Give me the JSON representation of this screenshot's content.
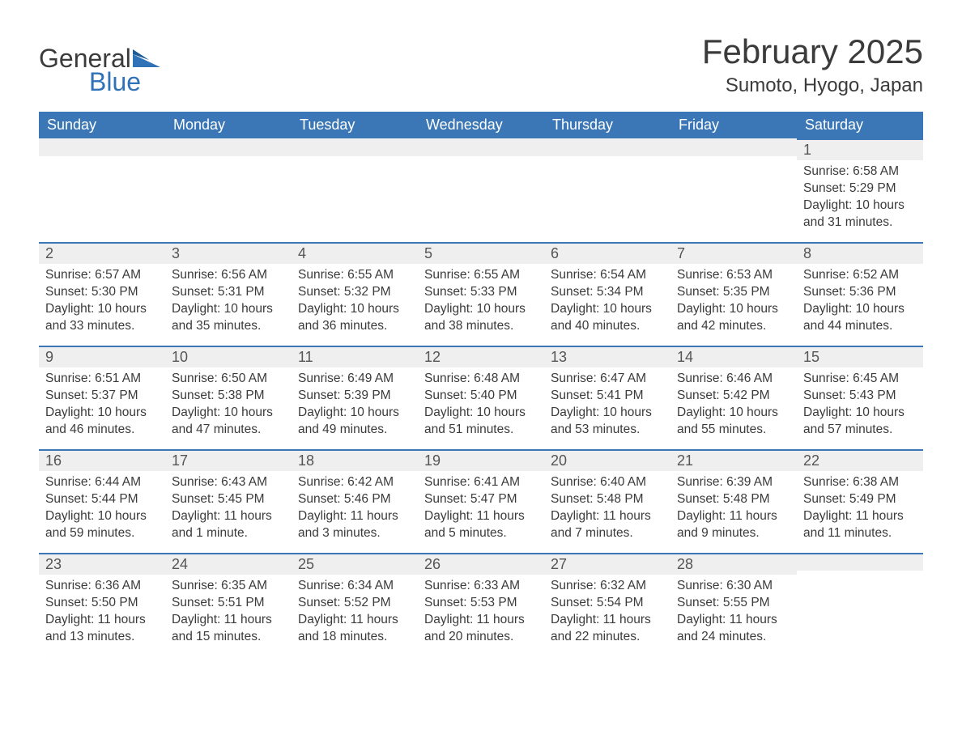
{
  "logo": {
    "word1": "General",
    "word2": "Blue"
  },
  "title": "February 2025",
  "subtitle": "Sumoto, Hyogo, Japan",
  "style": {
    "header_bg": "#3b77b6",
    "header_text": "#ffffff",
    "daynum_bg": "#efefef",
    "row_border": "#3b77b6",
    "body_text": "#3b3b3b",
    "page_bg": "#ffffff",
    "title_fontsize": 42,
    "subtitle_fontsize": 24,
    "header_fontsize": 18,
    "daynum_fontsize": 18,
    "cell_fontsize": 15.5
  },
  "columns": [
    "Sunday",
    "Monday",
    "Tuesday",
    "Wednesday",
    "Thursday",
    "Friday",
    "Saturday"
  ],
  "weeks": [
    [
      null,
      null,
      null,
      null,
      null,
      null,
      {
        "day": "1",
        "sunrise": "Sunrise: 6:58 AM",
        "sunset": "Sunset: 5:29 PM",
        "daylight": "Daylight: 10 hours and 31 minutes."
      }
    ],
    [
      {
        "day": "2",
        "sunrise": "Sunrise: 6:57 AM",
        "sunset": "Sunset: 5:30 PM",
        "daylight": "Daylight: 10 hours and 33 minutes."
      },
      {
        "day": "3",
        "sunrise": "Sunrise: 6:56 AM",
        "sunset": "Sunset: 5:31 PM",
        "daylight": "Daylight: 10 hours and 35 minutes."
      },
      {
        "day": "4",
        "sunrise": "Sunrise: 6:55 AM",
        "sunset": "Sunset: 5:32 PM",
        "daylight": "Daylight: 10 hours and 36 minutes."
      },
      {
        "day": "5",
        "sunrise": "Sunrise: 6:55 AM",
        "sunset": "Sunset: 5:33 PM",
        "daylight": "Daylight: 10 hours and 38 minutes."
      },
      {
        "day": "6",
        "sunrise": "Sunrise: 6:54 AM",
        "sunset": "Sunset: 5:34 PM",
        "daylight": "Daylight: 10 hours and 40 minutes."
      },
      {
        "day": "7",
        "sunrise": "Sunrise: 6:53 AM",
        "sunset": "Sunset: 5:35 PM",
        "daylight": "Daylight: 10 hours and 42 minutes."
      },
      {
        "day": "8",
        "sunrise": "Sunrise: 6:52 AM",
        "sunset": "Sunset: 5:36 PM",
        "daylight": "Daylight: 10 hours and 44 minutes."
      }
    ],
    [
      {
        "day": "9",
        "sunrise": "Sunrise: 6:51 AM",
        "sunset": "Sunset: 5:37 PM",
        "daylight": "Daylight: 10 hours and 46 minutes."
      },
      {
        "day": "10",
        "sunrise": "Sunrise: 6:50 AM",
        "sunset": "Sunset: 5:38 PM",
        "daylight": "Daylight: 10 hours and 47 minutes."
      },
      {
        "day": "11",
        "sunrise": "Sunrise: 6:49 AM",
        "sunset": "Sunset: 5:39 PM",
        "daylight": "Daylight: 10 hours and 49 minutes."
      },
      {
        "day": "12",
        "sunrise": "Sunrise: 6:48 AM",
        "sunset": "Sunset: 5:40 PM",
        "daylight": "Daylight: 10 hours and 51 minutes."
      },
      {
        "day": "13",
        "sunrise": "Sunrise: 6:47 AM",
        "sunset": "Sunset: 5:41 PM",
        "daylight": "Daylight: 10 hours and 53 minutes."
      },
      {
        "day": "14",
        "sunrise": "Sunrise: 6:46 AM",
        "sunset": "Sunset: 5:42 PM",
        "daylight": "Daylight: 10 hours and 55 minutes."
      },
      {
        "day": "15",
        "sunrise": "Sunrise: 6:45 AM",
        "sunset": "Sunset: 5:43 PM",
        "daylight": "Daylight: 10 hours and 57 minutes."
      }
    ],
    [
      {
        "day": "16",
        "sunrise": "Sunrise: 6:44 AM",
        "sunset": "Sunset: 5:44 PM",
        "daylight": "Daylight: 10 hours and 59 minutes."
      },
      {
        "day": "17",
        "sunrise": "Sunrise: 6:43 AM",
        "sunset": "Sunset: 5:45 PM",
        "daylight": "Daylight: 11 hours and 1 minute."
      },
      {
        "day": "18",
        "sunrise": "Sunrise: 6:42 AM",
        "sunset": "Sunset: 5:46 PM",
        "daylight": "Daylight: 11 hours and 3 minutes."
      },
      {
        "day": "19",
        "sunrise": "Sunrise: 6:41 AM",
        "sunset": "Sunset: 5:47 PM",
        "daylight": "Daylight: 11 hours and 5 minutes."
      },
      {
        "day": "20",
        "sunrise": "Sunrise: 6:40 AM",
        "sunset": "Sunset: 5:48 PM",
        "daylight": "Daylight: 11 hours and 7 minutes."
      },
      {
        "day": "21",
        "sunrise": "Sunrise: 6:39 AM",
        "sunset": "Sunset: 5:48 PM",
        "daylight": "Daylight: 11 hours and 9 minutes."
      },
      {
        "day": "22",
        "sunrise": "Sunrise: 6:38 AM",
        "sunset": "Sunset: 5:49 PM",
        "daylight": "Daylight: 11 hours and 11 minutes."
      }
    ],
    [
      {
        "day": "23",
        "sunrise": "Sunrise: 6:36 AM",
        "sunset": "Sunset: 5:50 PM",
        "daylight": "Daylight: 11 hours and 13 minutes."
      },
      {
        "day": "24",
        "sunrise": "Sunrise: 6:35 AM",
        "sunset": "Sunset: 5:51 PM",
        "daylight": "Daylight: 11 hours and 15 minutes."
      },
      {
        "day": "25",
        "sunrise": "Sunrise: 6:34 AM",
        "sunset": "Sunset: 5:52 PM",
        "daylight": "Daylight: 11 hours and 18 minutes."
      },
      {
        "day": "26",
        "sunrise": "Sunrise: 6:33 AM",
        "sunset": "Sunset: 5:53 PM",
        "daylight": "Daylight: 11 hours and 20 minutes."
      },
      {
        "day": "27",
        "sunrise": "Sunrise: 6:32 AM",
        "sunset": "Sunset: 5:54 PM",
        "daylight": "Daylight: 11 hours and 22 minutes."
      },
      {
        "day": "28",
        "sunrise": "Sunrise: 6:30 AM",
        "sunset": "Sunset: 5:55 PM",
        "daylight": "Daylight: 11 hours and 24 minutes."
      },
      null
    ]
  ]
}
